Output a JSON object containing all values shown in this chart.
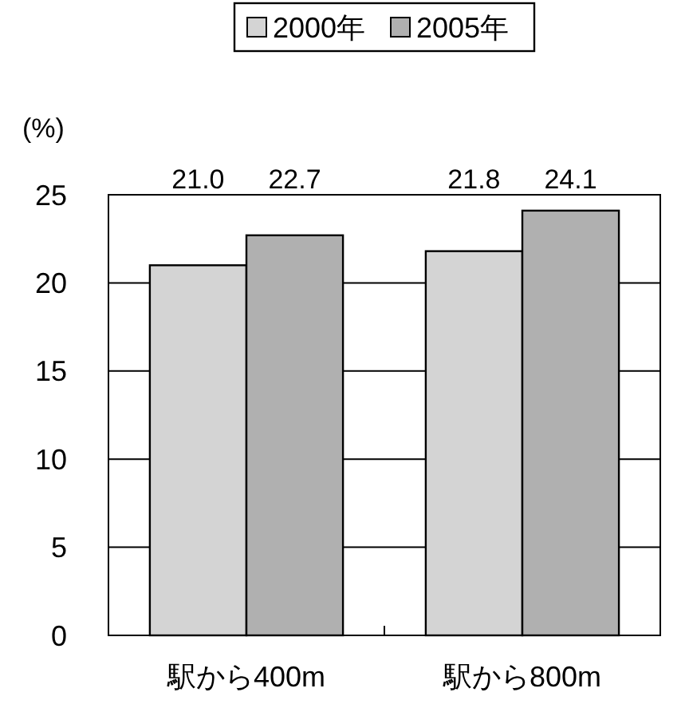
{
  "chart_data": {
    "type": "bar",
    "ylabel": "(%)",
    "categories": [
      "駅から400m",
      "駅から800m"
    ],
    "series": [
      {
        "name": "2000年",
        "color": "#d4d4d4",
        "values": [
          21.0,
          21.8
        ],
        "value_labels": [
          "21.0",
          "21.8"
        ]
      },
      {
        "name": "2005年",
        "color": "#b0b0b0",
        "values": [
          22.7,
          24.1
        ],
        "value_labels": [
          "22.7",
          "24.1"
        ]
      }
    ],
    "ylim": [
      0,
      25
    ],
    "yticks": [
      0,
      5,
      10,
      15,
      20,
      25
    ],
    "grid": "y",
    "legend": "top"
  }
}
